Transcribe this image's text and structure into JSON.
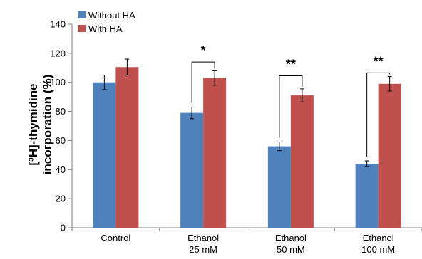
{
  "chart_data": {
    "type": "bar",
    "categories": [
      [
        "Control"
      ],
      [
        "Ethanol",
        "25 mM"
      ],
      [
        "Ethanol",
        "50 mM"
      ],
      [
        "Ethanol",
        "100 mM"
      ]
    ],
    "series": [
      {
        "name": "Without HA",
        "color": "#4F81BD",
        "values": [
          100,
          79,
          56,
          44
        ],
        "errors": [
          5,
          4,
          3,
          2
        ]
      },
      {
        "name": "With HA",
        "color": "#C0504D",
        "values": [
          110.5,
          103,
          91,
          99
        ],
        "errors": [
          5.5,
          5,
          4.5,
          5
        ]
      }
    ],
    "ylabel_lines": [
      "[³H]-thymidine",
      "incorporation (%)"
    ],
    "ylim": [
      0,
      140
    ],
    "yticks": [
      0,
      20,
      40,
      60,
      80,
      100,
      120,
      140
    ],
    "legend_position": "top-left",
    "grid": false,
    "significance": [
      {
        "category_index": 1,
        "label": "*",
        "line_value": 114
      },
      {
        "category_index": 2,
        "label": "**",
        "line_value": 104.5
      },
      {
        "category_index": 3,
        "label": "**",
        "line_value": 106.5
      }
    ]
  }
}
